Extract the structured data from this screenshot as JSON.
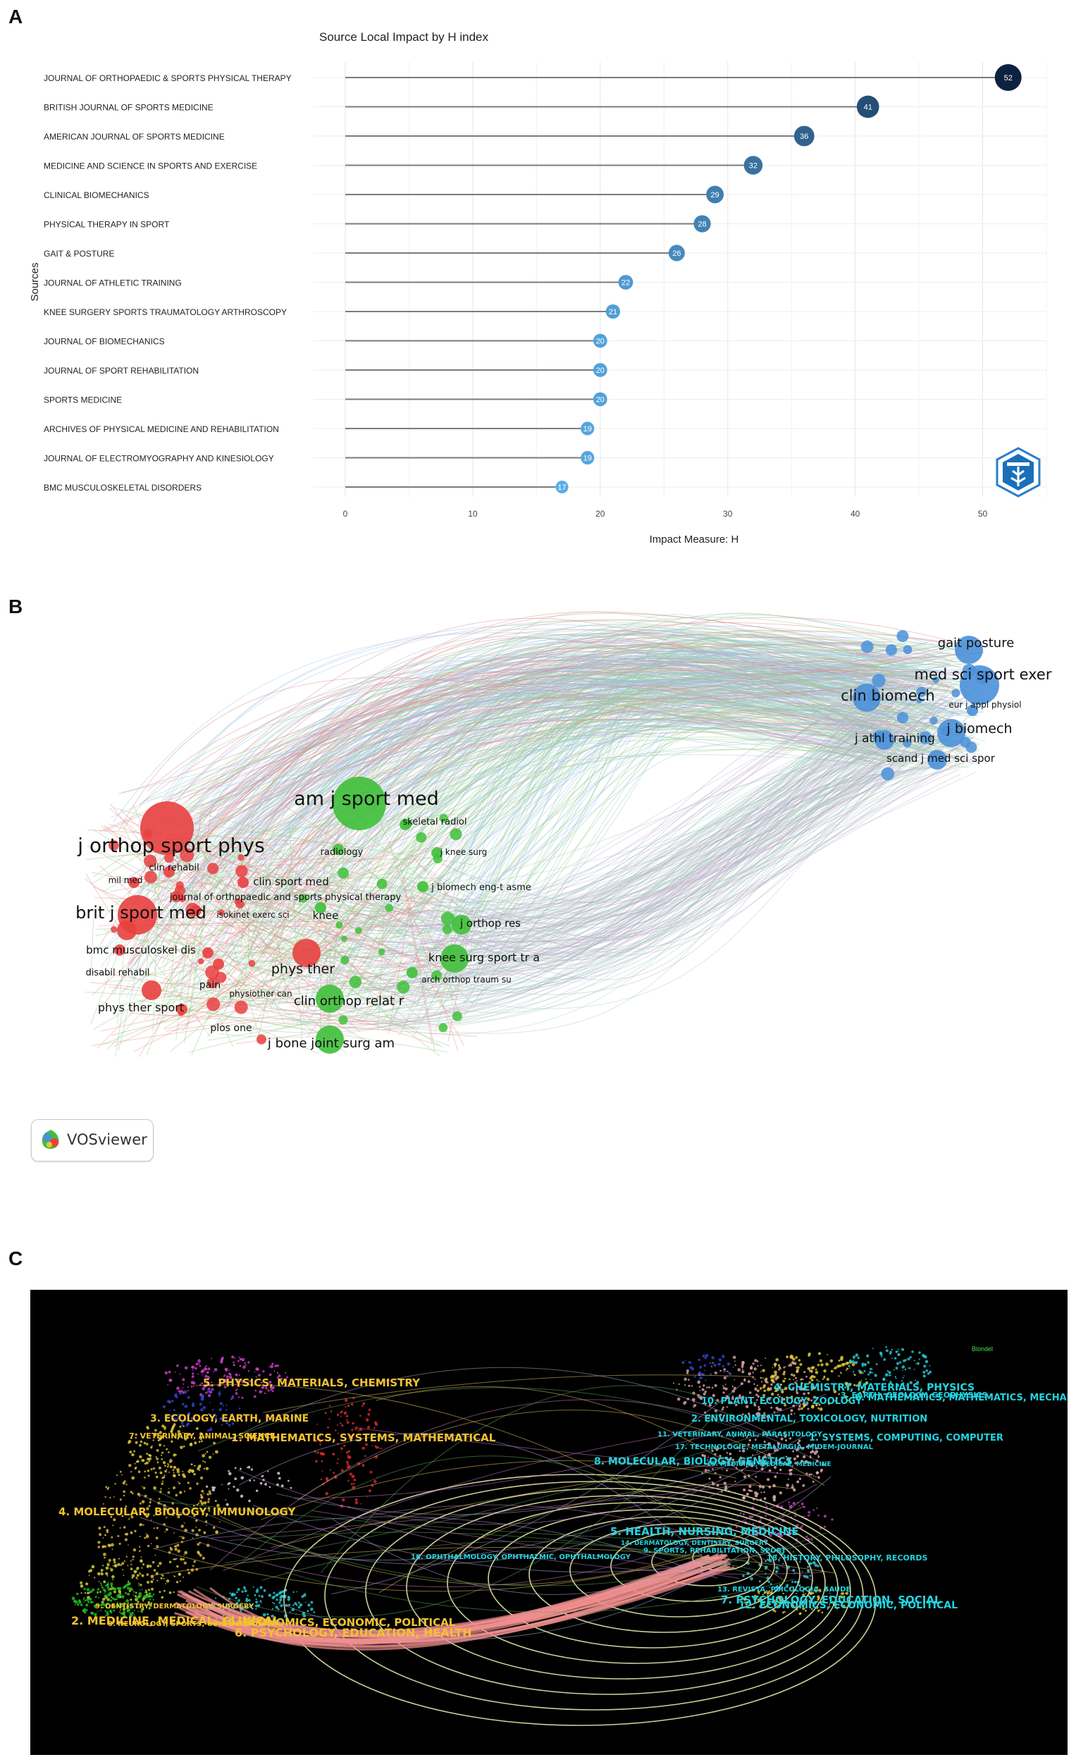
{
  "panels": {
    "a": "A",
    "b": "B",
    "c": "C"
  },
  "chart_data": [
    {
      "type": "lollipop",
      "title": "Source Local Impact by H index",
      "xlabel": "Impact Measure: H",
      "ylabel": "Sources",
      "xlim": [
        0,
        55
      ],
      "xticks": [
        0,
        10,
        20,
        30,
        40,
        50
      ],
      "grid": true,
      "categories": [
        "JOURNAL OF ORTHOPAEDIC & SPORTS PHYSICAL THERAPY",
        "BRITISH JOURNAL OF SPORTS MEDICINE",
        "AMERICAN JOURNAL OF SPORTS MEDICINE",
        "MEDICINE AND SCIENCE IN SPORTS AND EXERCISE",
        "CLINICAL BIOMECHANICS",
        "PHYSICAL THERAPY IN SPORT",
        "GAIT & POSTURE",
        "JOURNAL OF ATHLETIC TRAINING",
        "KNEE SURGERY SPORTS TRAUMATOLOGY ARTHROSCOPY",
        "JOURNAL OF BIOMECHANICS",
        "JOURNAL OF SPORT REHABILITATION",
        "SPORTS MEDICINE",
        "ARCHIVES OF PHYSICAL MEDICINE AND REHABILITATION",
        "JOURNAL OF ELECTROMYOGRAPHY AND KINESIOLOGY",
        "BMC MUSCULOSKELETAL DISORDERS"
      ],
      "values": [
        52,
        41,
        36,
        32,
        29,
        28,
        26,
        22,
        21,
        20,
        20,
        20,
        19,
        19,
        17
      ],
      "colors": {
        "low": "#5aaee8",
        "high": "#0d2240"
      }
    },
    {
      "type": "network",
      "title": "",
      "watermark": "VOSviewer",
      "clusters": [
        {
          "name": "red",
          "color": "#e8403f"
        },
        {
          "name": "green",
          "color": "#3fbf3a"
        },
        {
          "name": "blue",
          "color": "#4a90d9"
        }
      ],
      "nodes": [
        {
          "label": "j orthop sport phys",
          "cluster": "red",
          "size": 5
        },
        {
          "label": "brit j sport med",
          "cluster": "red",
          "size": 4
        },
        {
          "label": "clin rehabil",
          "cluster": "red",
          "size": 1
        },
        {
          "label": "mil med",
          "cluster": "red",
          "size": 1
        },
        {
          "label": "clin sport med",
          "cluster": "red",
          "size": 1
        },
        {
          "label": "journal of orthopaedic and sports physical therapy",
          "cluster": "red",
          "size": 1
        },
        {
          "label": "isokinet exerc sci",
          "cluster": "red",
          "size": 1
        },
        {
          "label": "bmc musculoskel dis",
          "cluster": "red",
          "size": 2
        },
        {
          "label": "disabil rehabil",
          "cluster": "red",
          "size": 1
        },
        {
          "label": "pain",
          "cluster": "red",
          "size": 1
        },
        {
          "label": "physiother can",
          "cluster": "red",
          "size": 1
        },
        {
          "label": "phys ther sport",
          "cluster": "red",
          "size": 2
        },
        {
          "label": "plos one",
          "cluster": "red",
          "size": 1
        },
        {
          "label": "phys ther",
          "cluster": "red",
          "size": 3
        },
        {
          "label": "am j sport med",
          "cluster": "green",
          "size": 5
        },
        {
          "label": "skeletal radiol",
          "cluster": "green",
          "size": 1
        },
        {
          "label": "radiology",
          "cluster": "green",
          "size": 1
        },
        {
          "label": "j knee surg",
          "cluster": "green",
          "size": 1
        },
        {
          "label": "j biomech eng-t asme",
          "cluster": "green",
          "size": 1
        },
        {
          "label": "knee",
          "cluster": "green",
          "size": 1
        },
        {
          "label": "j orthop res",
          "cluster": "green",
          "size": 2
        },
        {
          "label": "knee surg sport tr a",
          "cluster": "green",
          "size": 3
        },
        {
          "label": "arch orthop traum su",
          "cluster": "green",
          "size": 1
        },
        {
          "label": "clin orthop relat r",
          "cluster": "green",
          "size": 3
        },
        {
          "label": "j bone joint surg am",
          "cluster": "green",
          "size": 3
        },
        {
          "label": "gait posture",
          "cluster": "blue",
          "size": 3
        },
        {
          "label": "med sci sport exer",
          "cluster": "blue",
          "size": 4
        },
        {
          "label": "clin biomech",
          "cluster": "blue",
          "size": 3
        },
        {
          "label": "eur j appl physiol",
          "cluster": "blue",
          "size": 1
        },
        {
          "label": "j biomech",
          "cluster": "blue",
          "size": 3
        },
        {
          "label": "j athl training",
          "cluster": "blue",
          "size": 2
        },
        {
          "label": "scand j med sci spor",
          "cluster": "blue",
          "size": 2
        }
      ]
    },
    {
      "type": "dual-map overlay",
      "title": "",
      "legend_label": "Blondel",
      "citing_labels": [
        "5. PHYSICS, MATERIALS, CHEMISTRY",
        "3. ECOLOGY, EARTH, MARINE",
        "7. VETERINARY, ANIMAL, SCIENCE",
        "1. MATHEMATICS, SYSTEMS, MATHEMATICAL",
        "4. MOLECULAR, BIOLOGY, IMMUNOLOGY",
        "9. DENTISTRY, DERMATOLOGY, SURGERY",
        "2. MEDICINE, MEDICAL, CLINICAL",
        "8. NEUROLOGY, SPORTS, OPHTHALMOLOGY",
        "10. ECONOMICS, ECONOMIC, POLITICAL",
        "6. PSYCHOLOGY, EDUCATION, HEALTH"
      ],
      "cited_labels": [
        "4. CHEMISTRY, MATERIALS, PHYSICS",
        "3. EARTH, GEOLOGY, GEOPHYSICS",
        "6. MATHEMATICS, MATHEMATICS, MECHANICS",
        "10. PLANT, ECOLOGY, ZOOLOGY",
        "2. ENVIRONMENTAL, TOXICOLOGY, NUTRITION",
        "11. VETERINARY, ANIMAL, PARASITOLOGY",
        "1. SYSTEMS, COMPUTING, COMPUTER",
        "17. TECHNOLOGIE, METALURGIA, MIDEM-JOURNAL",
        "8. MOLECULAR, BIOLOGY, GENETICS",
        "15. MEDICINE, MEDICAL, MEDICINE",
        "5. HEALTH, NURSING, MEDICINE",
        "14. DERMATOLOGY, DENTISTRY, SURGERY",
        "9. SPORTS, REHABILITATION, SPORT",
        "18. HISTORY, PHILOSOPHY, RECORDS",
        "16. OPHTHALMOLOGY, OPHTHALMIC, OPHTHALMOLOGY",
        "13. REVISTA, PSICOLOGIA, SAUDE",
        "7. PSYCHOLOGY, EDUCATION, SOCIAL",
        "12. ECONOMICS, ECONOMIC, POLITICAL"
      ]
    }
  ]
}
